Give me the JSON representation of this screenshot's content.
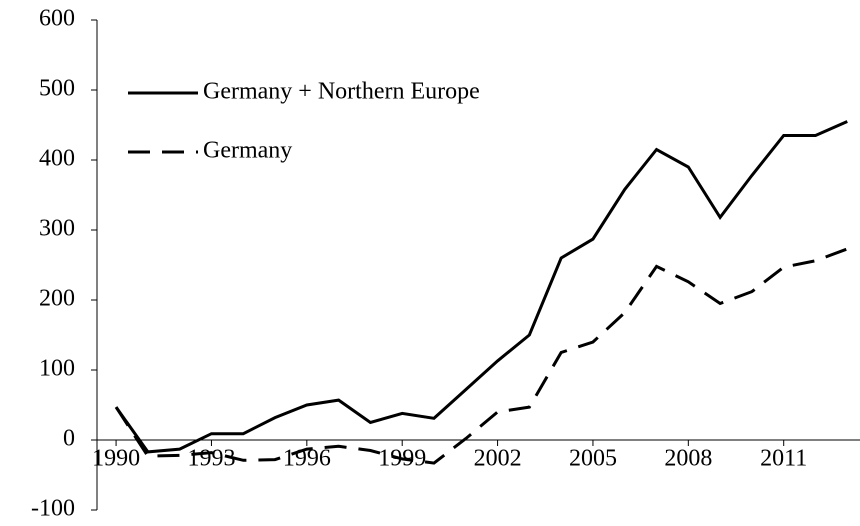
{
  "chart_data": {
    "type": "line",
    "x": [
      1990,
      1991,
      1992,
      1993,
      1994,
      1995,
      1996,
      1997,
      1998,
      1999,
      2000,
      2001,
      2002,
      2003,
      2004,
      2005,
      2006,
      2007,
      2008,
      2009,
      2010,
      2011,
      2012,
      2013
    ],
    "series": [
      {
        "name": "Germany + Northern Europe",
        "color": "#000000",
        "dash": "solid",
        "values": [
          47,
          -17,
          -13,
          9,
          9,
          32,
          50,
          57,
          25,
          38,
          31,
          72,
          113,
          150,
          260,
          287,
          358,
          415,
          390,
          318,
          378,
          435,
          435,
          455
        ]
      },
      {
        "name": "Germany",
        "color": "#000000",
        "dash": "dashed",
        "values": [
          47,
          -23,
          -22,
          -18,
          -29,
          -28,
          -13,
          -9,
          -15,
          -27,
          -33,
          2,
          40,
          47,
          125,
          140,
          182,
          248,
          226,
          195,
          212,
          247,
          256,
          273
        ]
      }
    ],
    "xlim": [
      1989.4,
      2013.4
    ],
    "xticks": [
      1990,
      1993,
      1996,
      1999,
      2002,
      2005,
      2008,
      2011
    ],
    "ylim": [
      -100,
      600
    ],
    "yticks": [
      -100,
      0,
      100,
      200,
      300,
      400,
      500,
      600
    ],
    "legend": "top-left"
  }
}
